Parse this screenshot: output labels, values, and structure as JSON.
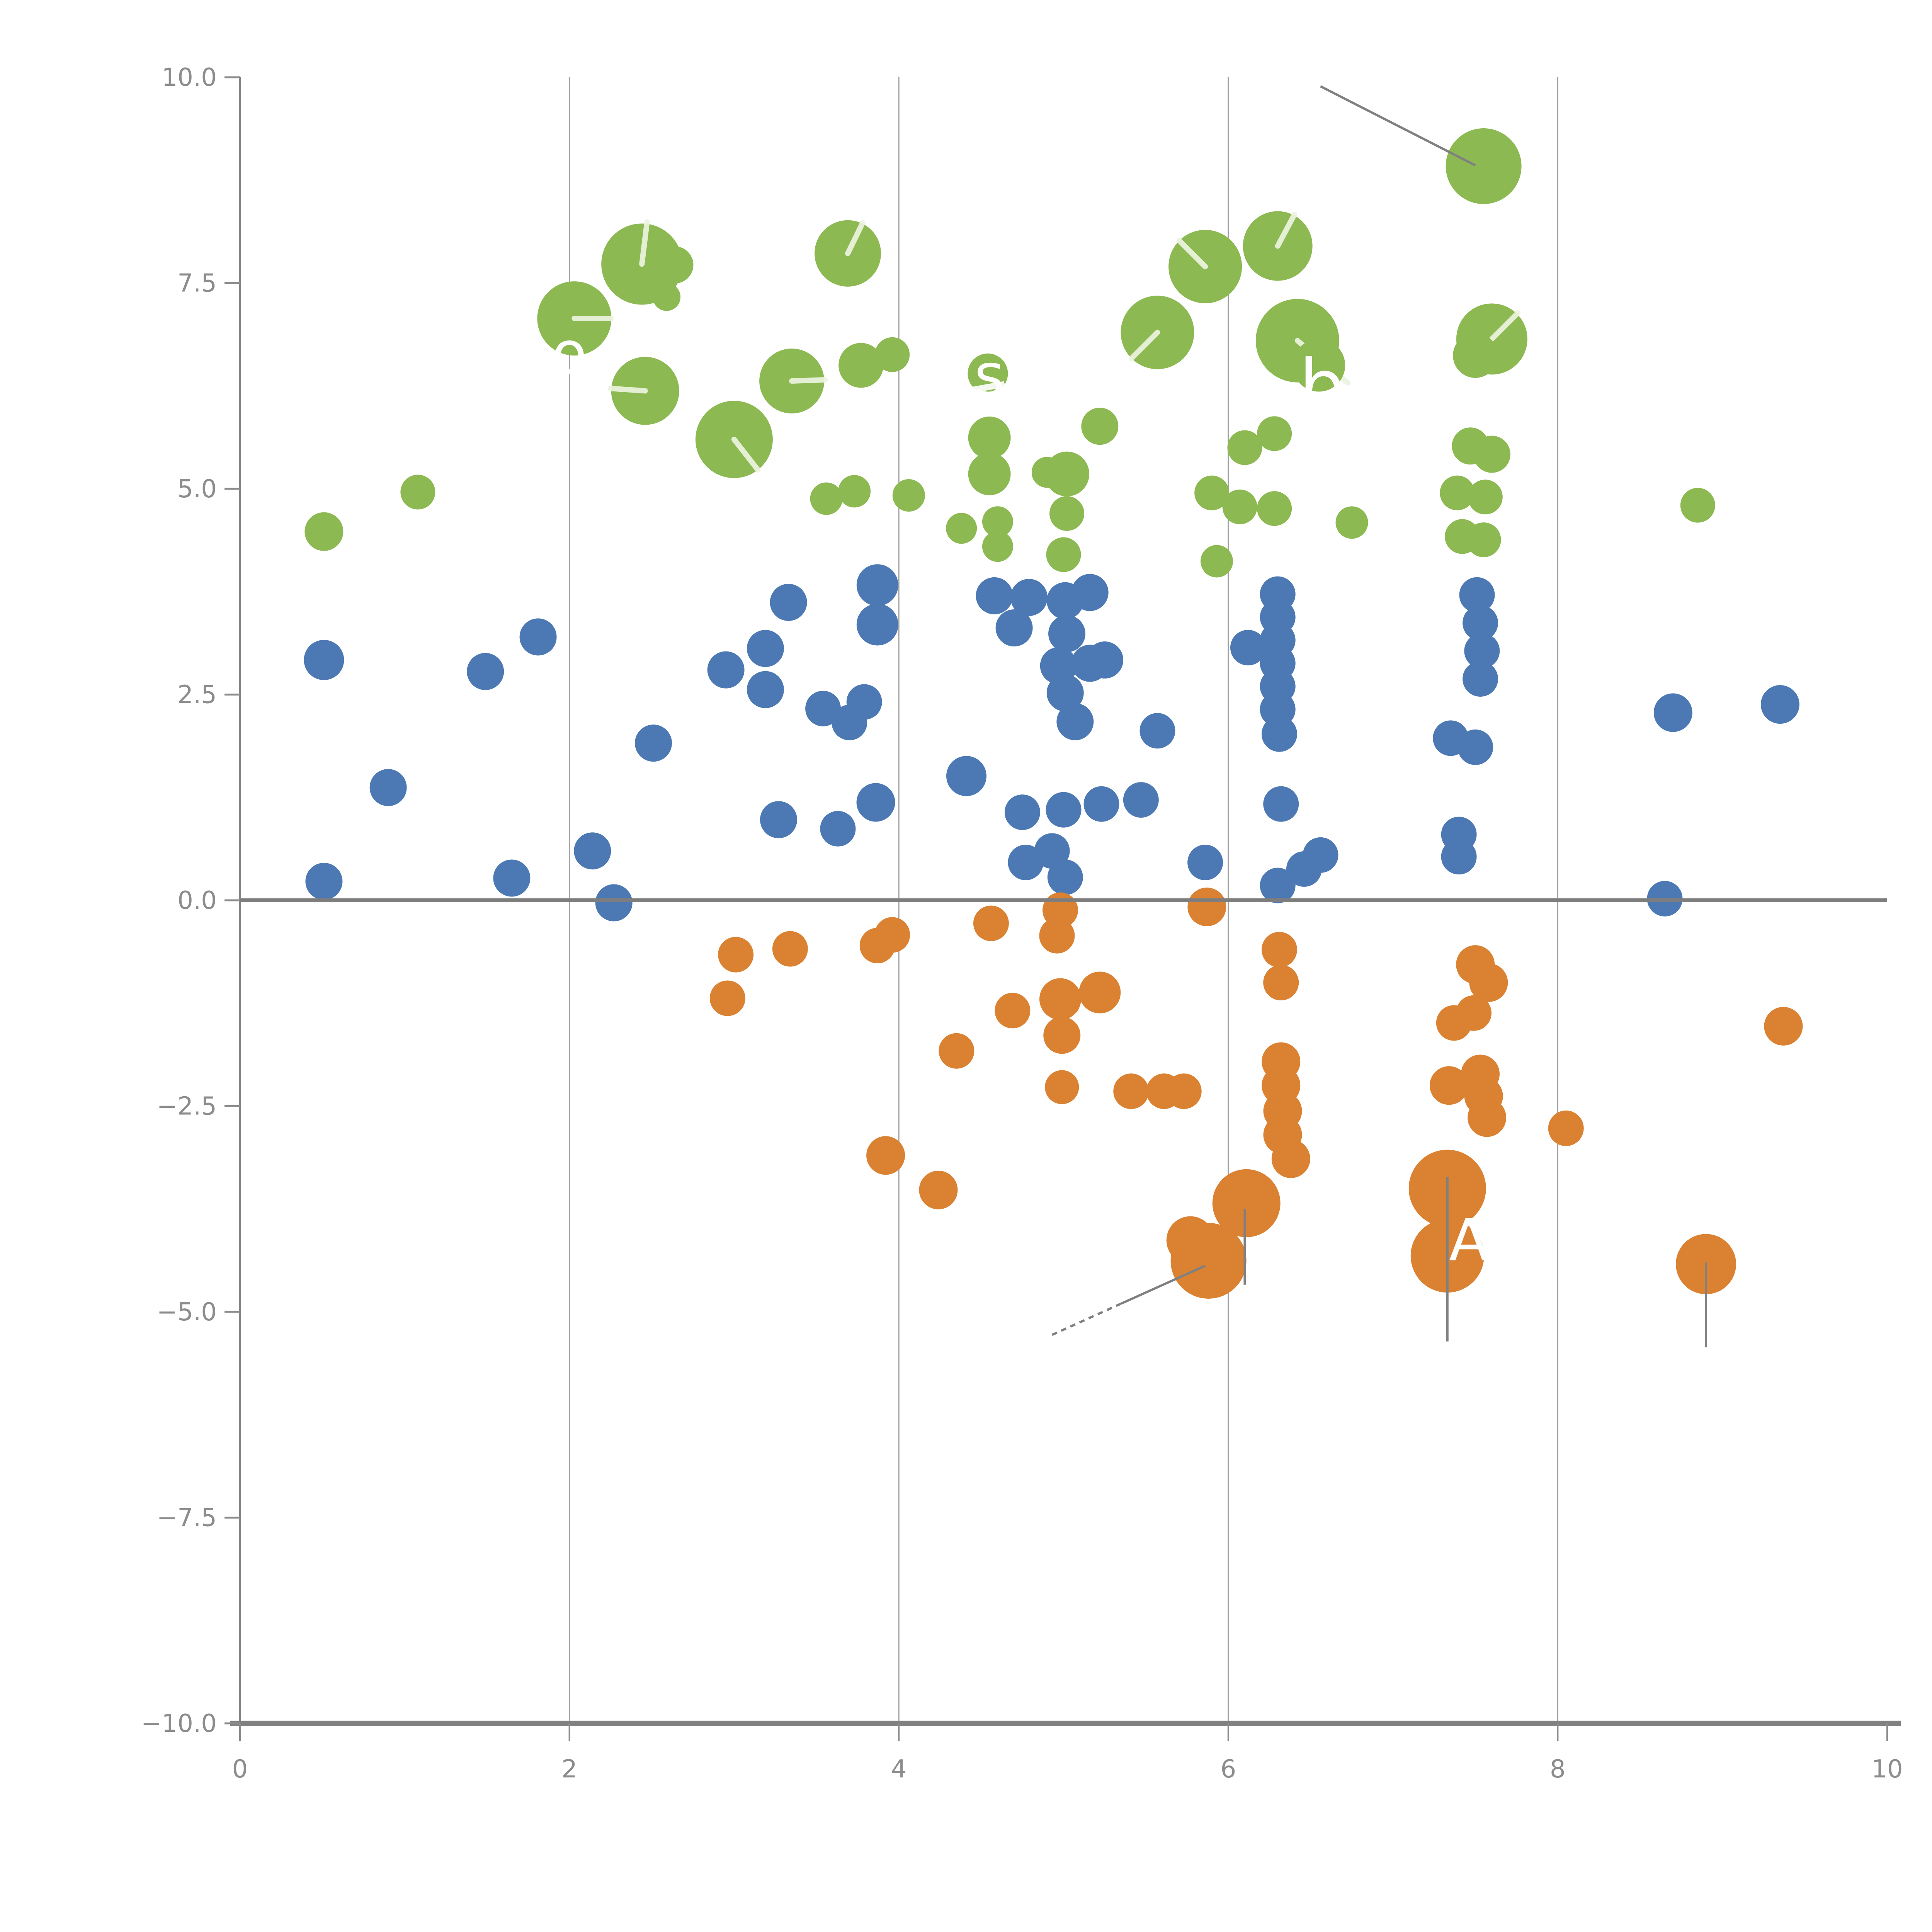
{
  "chart_data": {
    "type": "scatter",
    "title": "",
    "xlabel": "",
    "ylabel": "",
    "xlim": [
      0,
      10
    ],
    "ylim": [
      -10,
      10
    ],
    "legend": "none",
    "grid": {
      "vertical_at": [
        2,
        4,
        6,
        8
      ],
      "color": "#a3a3a3",
      "width": 3
    },
    "x_ticks": {
      "values": [
        0,
        2,
        4,
        6,
        8,
        10
      ],
      "labels": [
        "0",
        "2",
        "4",
        "6",
        "8",
        "10"
      ]
    },
    "y_ticks": {
      "values": [
        10,
        7.5,
        5,
        2.5,
        0,
        -2.5,
        -5,
        -7.5,
        -10
      ],
      "labels": [
        "10.0",
        "7.5",
        "5.0",
        "2.5",
        "0.0",
        "−2.5",
        "−5.0",
        "−7.5",
        "−10.0"
      ]
    },
    "zero_line": {
      "y": 0,
      "color": "#7d7d7d",
      "width": 10
    },
    "axis": {
      "spine_color": "#808080",
      "tick_color": "#8c8c8c",
      "label_color": "#8c8c8c",
      "font_px": 64
    },
    "colors": {
      "green": "#8CB951",
      "blue": "#4C79B3",
      "orange": "#DA8232",
      "tick_white": "#EDF3DF",
      "annotation_gray": "#808080",
      "text_white": "#ffffff"
    },
    "series": [
      {
        "name": "green",
        "color_key": "green",
        "points": [
          [
            0.51,
            4.48,
            50
          ],
          [
            1.08,
            4.96,
            45
          ],
          [
            2.03,
            7.07,
            96,
            0,
            95
          ],
          [
            2.44,
            7.73,
            105,
            83,
            110
          ],
          [
            2.64,
            7.72,
            48
          ],
          [
            2.59,
            7.33,
            36
          ],
          [
            2.46,
            6.19,
            88,
            176,
            90
          ],
          [
            3.0,
            5.6,
            100,
            -52,
            100
          ],
          [
            3.69,
            7.86,
            86,
            64,
            88
          ],
          [
            3.35,
            6.31,
            84,
            2,
            86
          ],
          [
            3.77,
            6.5,
            58
          ],
          [
            3.96,
            6.63,
            45
          ],
          [
            3.56,
            4.88,
            42
          ],
          [
            3.73,
            4.97,
            42
          ],
          [
            4.06,
            4.92,
            42
          ],
          [
            4.38,
            4.52,
            40
          ],
          [
            4.6,
            4.6,
            40
          ],
          [
            4.6,
            4.3,
            40
          ],
          [
            4.54,
            6.4,
            52
          ],
          [
            4.55,
            5.62,
            55
          ],
          [
            4.55,
            5.18,
            55
          ],
          [
            4.9,
            5.2,
            40
          ],
          [
            5.02,
            5.18,
            58
          ],
          [
            5.02,
            4.7,
            45
          ],
          [
            5.0,
            4.2,
            45
          ],
          [
            5.22,
            5.76,
            48
          ],
          [
            5.57,
            6.9,
            95,
            225,
            95
          ],
          [
            5.86,
            7.7,
            95,
            135,
            95
          ],
          [
            6.3,
            7.95,
            90,
            62,
            92
          ],
          [
            6.42,
            6.8,
            108,
            -40,
            170
          ],
          [
            6.55,
            6.5,
            68
          ],
          [
            7.55,
            8.92,
            98
          ],
          [
            7.6,
            6.82,
            92,
            45,
            95
          ],
          [
            7.5,
            6.62,
            58
          ],
          [
            5.9,
            4.95,
            45
          ],
          [
            6.07,
            4.78,
            45
          ],
          [
            6.28,
            4.76,
            45
          ],
          [
            5.93,
            4.12,
            42
          ],
          [
            6.1,
            5.5,
            45
          ],
          [
            6.28,
            5.67,
            45
          ],
          [
            6.75,
            4.59,
            42
          ],
          [
            7.47,
            5.52,
            48
          ],
          [
            7.6,
            5.42,
            48
          ],
          [
            7.39,
            4.95,
            45
          ],
          [
            7.56,
            4.9,
            45
          ],
          [
            7.42,
            4.42,
            45
          ],
          [
            7.55,
            4.38,
            45
          ],
          [
            8.85,
            4.8,
            45
          ]
        ]
      },
      {
        "name": "blue",
        "color_key": "blue",
        "points": [
          [
            0.51,
            2.92,
            52
          ],
          [
            0.51,
            0.23,
            48
          ],
          [
            0.9,
            1.37,
            48
          ],
          [
            1.49,
            2.78,
            48
          ],
          [
            1.81,
            3.2,
            48
          ],
          [
            1.65,
            0.27,
            48
          ],
          [
            2.14,
            0.6,
            48
          ],
          [
            2.27,
            -0.03,
            48
          ],
          [
            2.51,
            1.91,
            48
          ],
          [
            2.95,
            2.8,
            48
          ],
          [
            3.19,
            3.06,
            48
          ],
          [
            3.19,
            2.56,
            48
          ],
          [
            3.33,
            3.62,
            48
          ],
          [
            3.27,
            0.98,
            48
          ],
          [
            3.87,
            3.83,
            54
          ],
          [
            3.87,
            3.35,
            54
          ],
          [
            3.54,
            2.33,
            46
          ],
          [
            3.7,
            2.16,
            46
          ],
          [
            3.79,
            2.41,
            46
          ],
          [
            3.86,
            1.19,
            50
          ],
          [
            3.63,
            0.87,
            46
          ],
          [
            4.41,
            1.51,
            52
          ],
          [
            4.58,
            3.7,
            48
          ],
          [
            4.79,
            3.68,
            48
          ],
          [
            4.7,
            3.31,
            48
          ],
          [
            5.01,
            3.64,
            48
          ],
          [
            5.16,
            3.74,
            48
          ],
          [
            5.02,
            3.24,
            48
          ],
          [
            4.97,
            2.85,
            48
          ],
          [
            5.16,
            2.88,
            48
          ],
          [
            5.25,
            2.92,
            48
          ],
          [
            5.01,
            2.52,
            48
          ],
          [
            5.07,
            2.17,
            48
          ],
          [
            5.57,
            2.06,
            46
          ],
          [
            4.75,
            1.07,
            46
          ],
          [
            5.0,
            1.1,
            46
          ],
          [
            5.23,
            1.17,
            46
          ],
          [
            5.47,
            1.22,
            46
          ],
          [
            4.77,
            0.46,
            46
          ],
          [
            4.93,
            0.6,
            46
          ],
          [
            5.01,
            0.28,
            46
          ],
          [
            5.86,
            0.46,
            46
          ],
          [
            6.46,
            0.38,
            46
          ],
          [
            6.56,
            0.55,
            46
          ],
          [
            6.3,
            0.18,
            46
          ],
          [
            6.12,
            3.07,
            46
          ],
          [
            6.3,
            3.72,
            46
          ],
          [
            6.3,
            3.44,
            46
          ],
          [
            6.3,
            3.16,
            46
          ],
          [
            6.3,
            2.88,
            46
          ],
          [
            6.3,
            2.6,
            46
          ],
          [
            6.3,
            2.32,
            46
          ],
          [
            6.31,
            2.02,
            46
          ],
          [
            6.32,
            1.17,
            46
          ],
          [
            7.51,
            3.71,
            46
          ],
          [
            7.53,
            3.37,
            46
          ],
          [
            7.54,
            3.03,
            46
          ],
          [
            7.53,
            2.69,
            46
          ],
          [
            7.35,
            1.97,
            46
          ],
          [
            7.5,
            1.86,
            46
          ],
          [
            7.4,
            0.8,
            46
          ],
          [
            7.4,
            0.53,
            46
          ],
          [
            8.65,
            0.02,
            46
          ],
          [
            8.7,
            2.28,
            50
          ],
          [
            9.35,
            2.38,
            50
          ]
        ]
      },
      {
        "name": "orange",
        "color_key": "orange",
        "points": [
          [
            3.01,
            -0.66,
            46
          ],
          [
            2.96,
            -1.19,
            46
          ],
          [
            3.34,
            -0.59,
            46
          ],
          [
            3.87,
            -0.55,
            46
          ],
          [
            3.96,
            -0.42,
            46
          ],
          [
            4.56,
            -0.28,
            46
          ],
          [
            4.96,
            -0.43,
            46
          ],
          [
            4.98,
            -0.12,
            46
          ],
          [
            5.87,
            -0.08,
            50
          ],
          [
            4.35,
            -1.83,
            46
          ],
          [
            4.69,
            -1.34,
            46
          ],
          [
            3.92,
            -3.1,
            50
          ],
          [
            4.24,
            -3.52,
            50
          ],
          [
            4.98,
            -1.2,
            54
          ],
          [
            5.22,
            -1.12,
            54
          ],
          [
            4.99,
            -1.64,
            48
          ],
          [
            4.99,
            -2.27,
            44
          ],
          [
            5.41,
            -2.32,
            46
          ],
          [
            5.61,
            -2.32,
            46
          ],
          [
            5.73,
            -2.32,
            46
          ],
          [
            6.31,
            -0.6,
            46
          ],
          [
            6.32,
            -1.0,
            46
          ],
          [
            6.32,
            -1.96,
            50
          ],
          [
            6.32,
            -2.25,
            50
          ],
          [
            6.33,
            -2.56,
            50
          ],
          [
            6.33,
            -2.85,
            50
          ],
          [
            6.38,
            -3.14,
            50
          ],
          [
            6.11,
            -3.68,
            88
          ],
          [
            5.88,
            -4.38,
            98
          ],
          [
            5.77,
            -4.13,
            62
          ],
          [
            7.5,
            -0.78,
            50
          ],
          [
            7.58,
            -1.0,
            50
          ],
          [
            7.37,
            -1.49,
            46
          ],
          [
            7.49,
            -1.37,
            46
          ],
          [
            7.34,
            -2.25,
            50
          ],
          [
            7.53,
            -2.11,
            50
          ],
          [
            7.55,
            -2.38,
            50
          ],
          [
            7.57,
            -2.64,
            50
          ],
          [
            8.05,
            -2.77,
            46
          ],
          [
            7.33,
            -3.5,
            100
          ],
          [
            7.33,
            -4.32,
            95
          ],
          [
            8.9,
            -4.42,
            78
          ],
          [
            9.37,
            -1.53,
            50
          ]
        ]
      }
    ],
    "annotation_lines": [
      {
        "x1": 6.56,
        "y1": 9.89,
        "x2": 7.5,
        "y2": 8.93,
        "dash": ""
      },
      {
        "x1": 4.93,
        "y1": -5.28,
        "x2": 5.35,
        "y2": -4.9,
        "dash": "14 12"
      },
      {
        "x1": 5.35,
        "y1": -4.9,
        "x2": 5.86,
        "y2": -4.44,
        "dash": ""
      },
      {
        "x1": 6.1,
        "y1": -3.75,
        "x2": 6.1,
        "y2": -4.67,
        "dash": ""
      },
      {
        "x1": 7.33,
        "y1": -3.36,
        "x2": 7.33,
        "y2": -5.36,
        "dash": ""
      },
      {
        "x1": 8.9,
        "y1": -4.4,
        "x2": 8.9,
        "y2": -5.43,
        "dash": ""
      }
    ],
    "annotation_texts": [
      {
        "text": "o",
        "x": 2.0,
        "y": 6.6,
        "size": 150
      },
      {
        "text": "s",
        "x": 4.55,
        "y": 6.33,
        "size": 150
      },
      {
        "text": "b",
        "x": 6.57,
        "y": 6.18,
        "size": 190
      },
      {
        "text": "A",
        "x": 7.46,
        "y": -4.18,
        "size": 150
      }
    ],
    "white_streaks": [
      {
        "x": 4.44,
        "y": 6.2,
        "len": 175,
        "height": 16,
        "angle": -10
      }
    ]
  }
}
